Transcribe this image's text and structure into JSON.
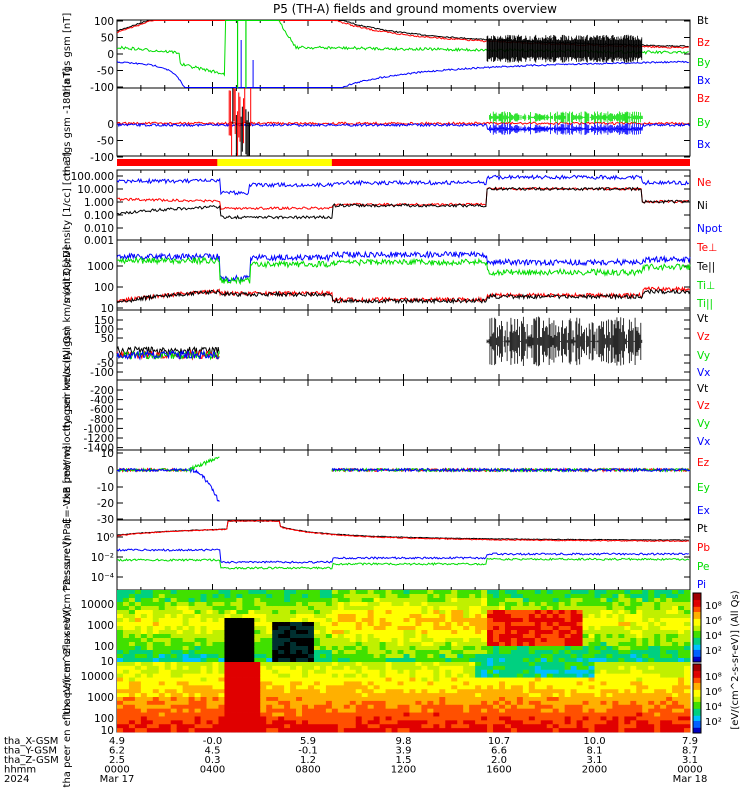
{
  "title": "P5 (TH-A) fields and ground moments overview",
  "colors": {
    "black": "#000000",
    "red": "#ff0000",
    "green": "#00dd00",
    "blue": "#0000ff",
    "yellow": "#ffff00"
  },
  "chart_data": [
    {
      "id": "fgs",
      "type": "line",
      "ylabel": "tha fgs gsm [nT]",
      "ylim": [
        -100,
        100
      ],
      "ytick_labels": [
        "100",
        "50",
        "0",
        "-50",
        "-100"
      ],
      "legend": [
        {
          "name": "Bt",
          "color": "black"
        },
        {
          "name": "Bz",
          "color": "red"
        },
        {
          "name": "By",
          "color": "green"
        },
        {
          "name": "Bx",
          "color": "blue"
        }
      ]
    },
    {
      "id": "fgs_dsl",
      "type": "line",
      "ylabel": "tha fgs gsm -180 [nT]",
      "ylim": [
        -120,
        40
      ],
      "ytick_labels": [
        "0",
        "-50",
        "-100"
      ],
      "legend": [
        {
          "name": "Bz",
          "color": "red"
        },
        {
          "name": "By",
          "color": "green"
        },
        {
          "name": "Bx",
          "color": "blue"
        }
      ]
    },
    {
      "id": "density",
      "type": "line",
      "ylabel": "Density [1/cc] [cm-3]",
      "log": true,
      "ytick_labels": [
        "100.000",
        "10.000",
        "1.000",
        "0.100",
        "0.010",
        "0.001"
      ],
      "legend": [
        {
          "name": "Ne",
          "color": "red"
        },
        {
          "name": "Ni",
          "color": "black"
        },
        {
          "name": "Npot",
          "color": "blue"
        }
      ]
    },
    {
      "id": "temperature",
      "type": "line",
      "ylabel": "moqt3 [eV]",
      "log": true,
      "ytick_labels": [
        "1000",
        "100",
        "10"
      ],
      "legend": [
        {
          "name": "Te⊥",
          "color": "red"
        },
        {
          "name": "Te||",
          "color": "black"
        },
        {
          "name": "Ti⊥",
          "color": "green"
        },
        {
          "name": "Ti||",
          "color": "green"
        }
      ]
    },
    {
      "id": "peir_velocity",
      "type": "line",
      "ylabel": "tha peir velocity gsm km/s (All Qs)",
      "ylim": [
        -100,
        180
      ],
      "ytick_labels": [
        "150",
        "100",
        "50",
        "0",
        "-50",
        "-100"
      ],
      "legend": [
        {
          "name": "Vt",
          "color": "black"
        },
        {
          "name": "Vz",
          "color": "red"
        },
        {
          "name": "Vy",
          "color": "green"
        },
        {
          "name": "Vx",
          "color": "blue"
        }
      ]
    },
    {
      "id": "peer_velocity",
      "type": "line",
      "ylabel": "tha peer velocity gsm km/s (All Qs)",
      "ylim": [
        -1500,
        -150
      ],
      "ytick_labels": [
        "-200",
        "-400",
        "-600",
        "-800",
        "-1000",
        "-1200",
        "-1400"
      ],
      "legend": [
        {
          "name": "Vt",
          "color": "black"
        },
        {
          "name": "Vz",
          "color": "red"
        },
        {
          "name": "Vy",
          "color": "green"
        },
        {
          "name": "Vx",
          "color": "blue"
        }
      ]
    },
    {
      "id": "efield",
      "type": "line",
      "ylabel": "E=-VxB [mV/m]",
      "ylim": [
        -32,
        10
      ],
      "ytick_labels": [
        "10",
        "0",
        "-10",
        "-20",
        "-30"
      ],
      "legend": [
        {
          "name": "Ez",
          "color": "red"
        },
        {
          "name": "Ey",
          "color": "green"
        },
        {
          "name": "Ex",
          "color": "blue"
        }
      ]
    },
    {
      "id": "pressure",
      "type": "line",
      "ylabel": "Pressure [nPa]",
      "log": true,
      "ytick_labels": [
        "10⁰",
        "10⁻²",
        "10⁻⁴"
      ],
      "legend": [
        {
          "name": "Pt",
          "color": "black"
        },
        {
          "name": "Pb",
          "color": "red"
        },
        {
          "name": "Pe",
          "color": "green"
        },
        {
          "name": "Pi",
          "color": "blue"
        }
      ]
    },
    {
      "id": "peir_flux",
      "type": "heatmap",
      "ylabel": "tha peir en eflux eV/(cm^2-s-sr-eV)",
      "ytick_labels": [
        "10000",
        "1000",
        "100",
        "10"
      ]
    },
    {
      "id": "peer_flux",
      "type": "heatmap",
      "ylabel": "tha peer en eflux eV/(cm^2-s-sr-eV)",
      "ytick_labels": [
        "10000",
        "1000",
        "100",
        "10"
      ]
    }
  ],
  "colorbar": {
    "label": "[eV/(cm^2-s-sr-eV)] (All Qs)",
    "top_tick_labels": [
      "10⁸",
      "10⁶",
      "10⁴",
      "10²"
    ],
    "bottom_tick_labels": [
      "10⁸",
      "10⁶",
      "10⁴",
      "10²"
    ]
  },
  "time_axis": {
    "rows": [
      {
        "label": "tha_X-GSM",
        "values": [
          "4.9",
          "-0.0",
          "5.9",
          "9.8",
          "10.7",
          "10.0",
          "7.9"
        ]
      },
      {
        "label": "tha_Y-GSM",
        "values": [
          "6.2",
          "4.5",
          "-0.1",
          "3.9",
          "6.6",
          "8.1",
          "8.7"
        ]
      },
      {
        "label": "tha_Z-GSM",
        "values": [
          "2.5",
          "0.3",
          "1.2",
          "1.5",
          "2.0",
          "3.1",
          "3.1"
        ]
      },
      {
        "label": "hhmm",
        "values": [
          "0000",
          "0400",
          "0800",
          "1200",
          "1600",
          "2000",
          "0000"
        ]
      },
      {
        "label": "2024",
        "values": [
          "Mar 17",
          "",
          "",
          "",
          "",
          "",
          "Mar 18"
        ]
      }
    ]
  }
}
